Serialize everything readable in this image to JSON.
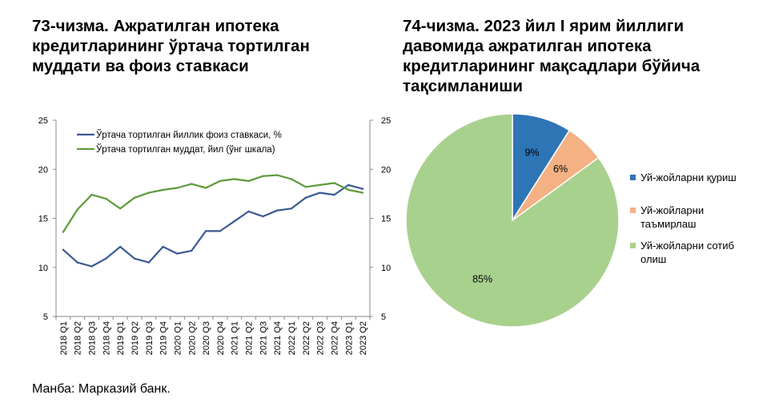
{
  "left_title": "73-чизма. Ажратилган ипотека кредитларининг ўртача тортилган муддати ва фоиз ставкаси",
  "right_title": "74-чизма. 2023 йил I ярим йиллиги давомида ажратилган ипотека кредитларининг мақсадлари бўйича тақсимланиши",
  "source": "Манба: Марказий банк.",
  "chart_data": [
    {
      "type": "line",
      "x": [
        "2018 Q1",
        "2018 Q2",
        "2018 Q3",
        "2018 Q4",
        "2019 Q1",
        "2019 Q2",
        "2019 Q3",
        "2019 Q4",
        "2020 Q1",
        "2020 Q2",
        "2020 Q3",
        "2020 Q4",
        "2021 Q1",
        "2021 Q2",
        "2021 Q3",
        "2021 Q4",
        "2022 Q1",
        "2022 Q2",
        "2022 Q3",
        "2022 Q4",
        "2023 Q1",
        "2023 Q2"
      ],
      "series": [
        {
          "name": "Ўртача тортилган йиллик фоиз ставкаси, %",
          "color": "#3B5A93",
          "axis": "left",
          "values": [
            11.8,
            10.5,
            10.1,
            10.9,
            12.1,
            10.9,
            10.5,
            12.1,
            11.4,
            11.7,
            13.7,
            13.7,
            14.7,
            15.7,
            15.2,
            15.8,
            16.0,
            17.1,
            17.6,
            17.4,
            18.4,
            18.0
          ]
        },
        {
          "name": "Ўртача тортилган муддат, йил (ўнг шкала)",
          "color": "#5E9A3A",
          "axis": "right",
          "values": [
            13.6,
            15.9,
            17.4,
            17.0,
            16.0,
            17.1,
            17.6,
            17.9,
            18.1,
            18.5,
            18.1,
            18.8,
            19.0,
            18.8,
            19.3,
            19.4,
            19.0,
            18.2,
            18.4,
            18.6,
            17.9,
            17.6
          ]
        }
      ],
      "ylim": [
        5,
        25
      ],
      "y_ticks": [
        "5",
        "10",
        "15",
        "20",
        "25"
      ],
      "y2lim": [
        5,
        25
      ],
      "y2_ticks": [
        "5",
        "10",
        "15",
        "20",
        "25"
      ],
      "grid": false,
      "legend_position": "top-left"
    },
    {
      "type": "pie",
      "labels": [
        "Уй-жойларни қуриш",
        "Уй-жойларни таъмирлаш",
        "Уй-жойларни сотиб олиш"
      ],
      "legend_lines": [
        [
          "Уй-жойларни қуриш"
        ],
        [
          "Уй-жойларни",
          "таъмирлаш"
        ],
        [
          "Уй-жойларни сотиб",
          "олиш"
        ]
      ],
      "values": [
        9,
        6,
        85
      ],
      "value_labels": [
        "9%",
        "6%",
        "85%"
      ],
      "colors": [
        "#2E75B6",
        "#F4B183",
        "#A9D18E"
      ],
      "legend_position": "right"
    }
  ]
}
